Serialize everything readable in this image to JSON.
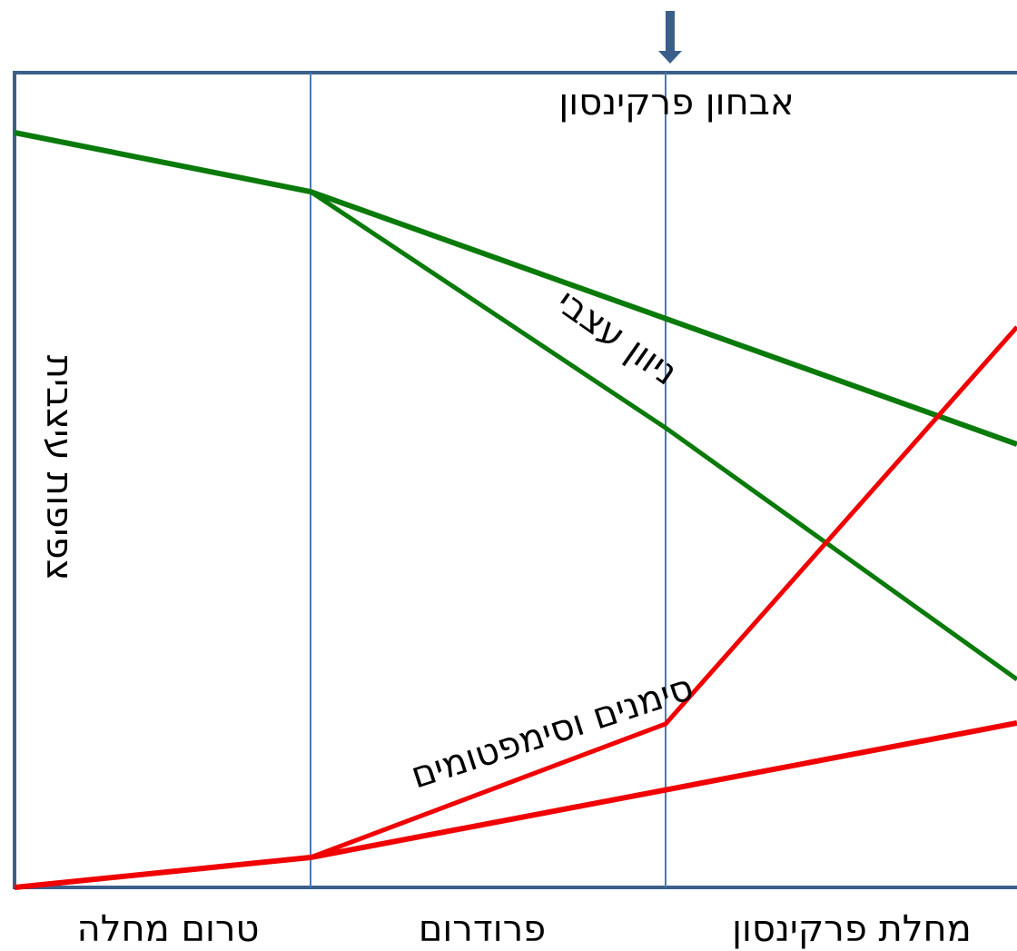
{
  "diagram": {
    "top_label": "אבחון פרקינסון",
    "y_label": "צפיפות עיצבית",
    "green_label": "ניוון עצבי",
    "red_label": "סימנים וסימפטומים",
    "phases": [
      "טרום מחלה",
      "פרודרום",
      "מחלת פרקינסון"
    ]
  }
}
